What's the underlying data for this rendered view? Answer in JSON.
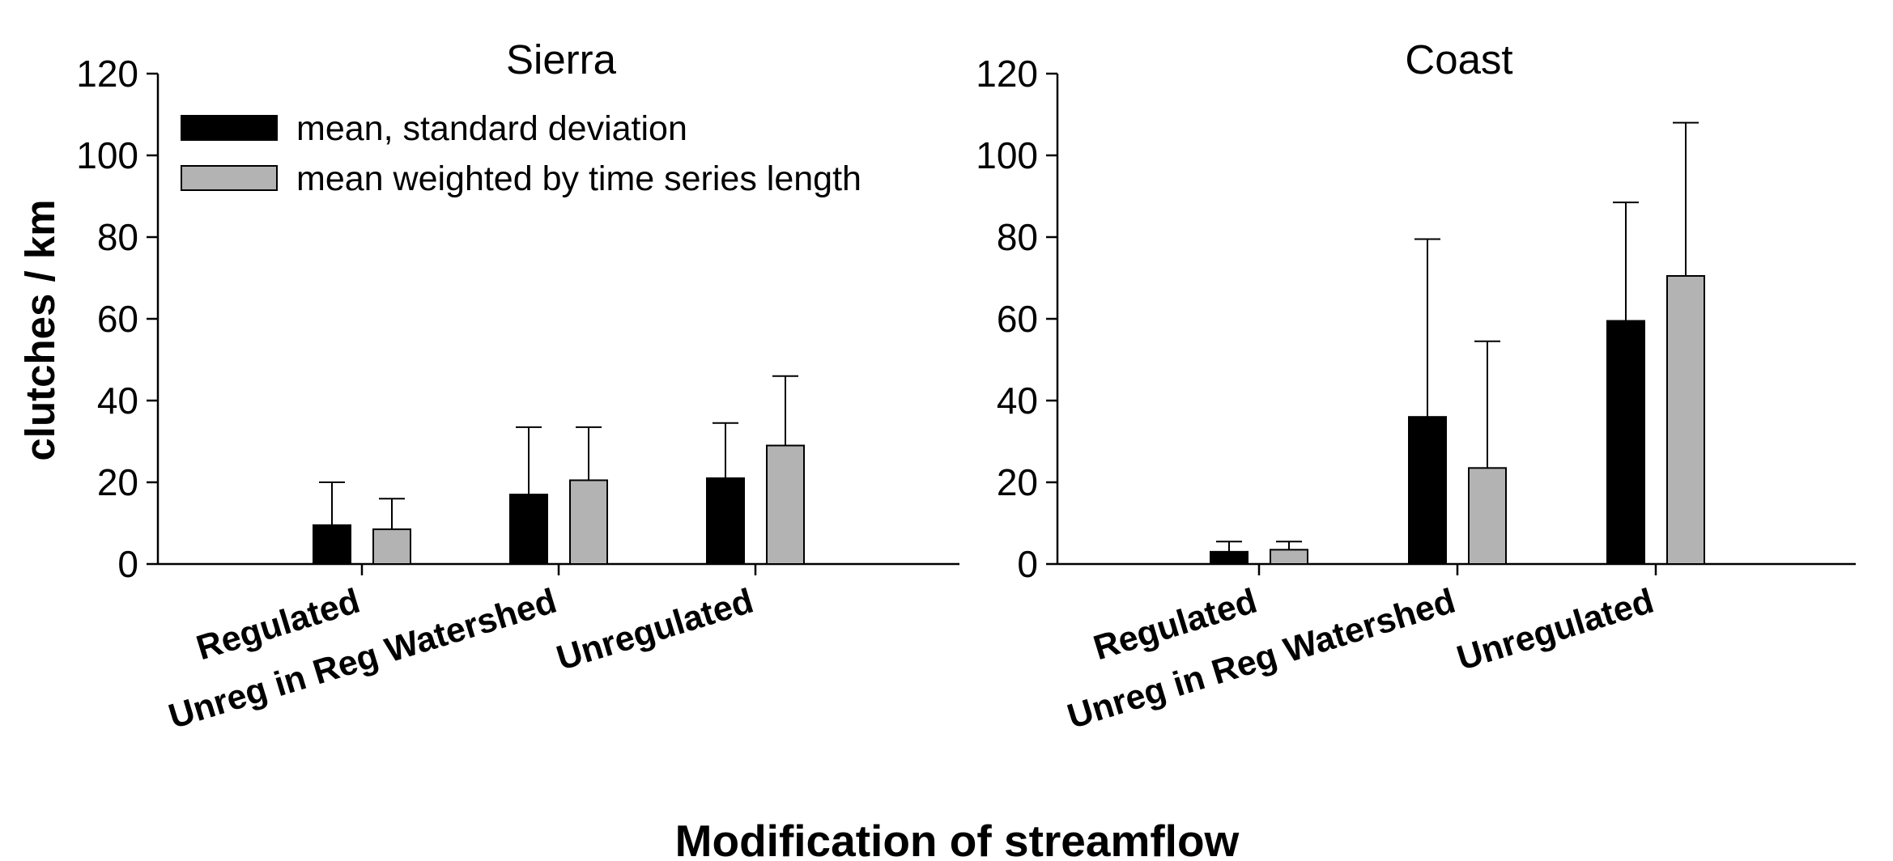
{
  "chart_data": [
    {
      "type": "bar",
      "title": "Sierra",
      "categories": [
        "Regulated",
        "Unreg in Reg Watershed",
        "Unregulated"
      ],
      "series": [
        {
          "name": "mean, standard deviation",
          "color": "#000000",
          "values": [
            9.5,
            17,
            21
          ],
          "error_upper": [
            20,
            33.5,
            34.5
          ]
        },
        {
          "name": "mean weighted by time series length",
          "color": "#b3b3b3",
          "values": [
            8.5,
            20.5,
            29
          ],
          "error_upper": [
            16,
            33.5,
            46
          ]
        }
      ],
      "ylim": [
        0,
        120
      ],
      "yticks": [
        "0",
        "20",
        "40",
        "60",
        "80",
        "100",
        "120"
      ],
      "ylabel": "clutches / km",
      "legend": "top-left"
    },
    {
      "type": "bar",
      "title": "Coast",
      "categories": [
        "Regulated",
        "Unreg in Reg Watershed",
        "Unregulated"
      ],
      "series": [
        {
          "name": "mean, standard deviation",
          "color": "#000000",
          "values": [
            3,
            36,
            59.5
          ],
          "error_upper": [
            5.5,
            79.5,
            88.5
          ]
        },
        {
          "name": "mean weighted by time series length",
          "color": "#b3b3b3",
          "values": [
            3.5,
            23.5,
            70.5
          ],
          "error_upper": [
            5.5,
            54.5,
            108
          ]
        }
      ],
      "ylim": [
        0,
        120
      ],
      "yticks": [
        "0",
        "20",
        "40",
        "60",
        "80",
        "100",
        "120"
      ]
    }
  ],
  "xlabel": "Modification of streamflow",
  "legend": {
    "entries": [
      {
        "label": "mean, standard deviation",
        "color": "#000000"
      },
      {
        "label": "mean weighted by time series length",
        "color": "#b3b3b3"
      }
    ]
  }
}
